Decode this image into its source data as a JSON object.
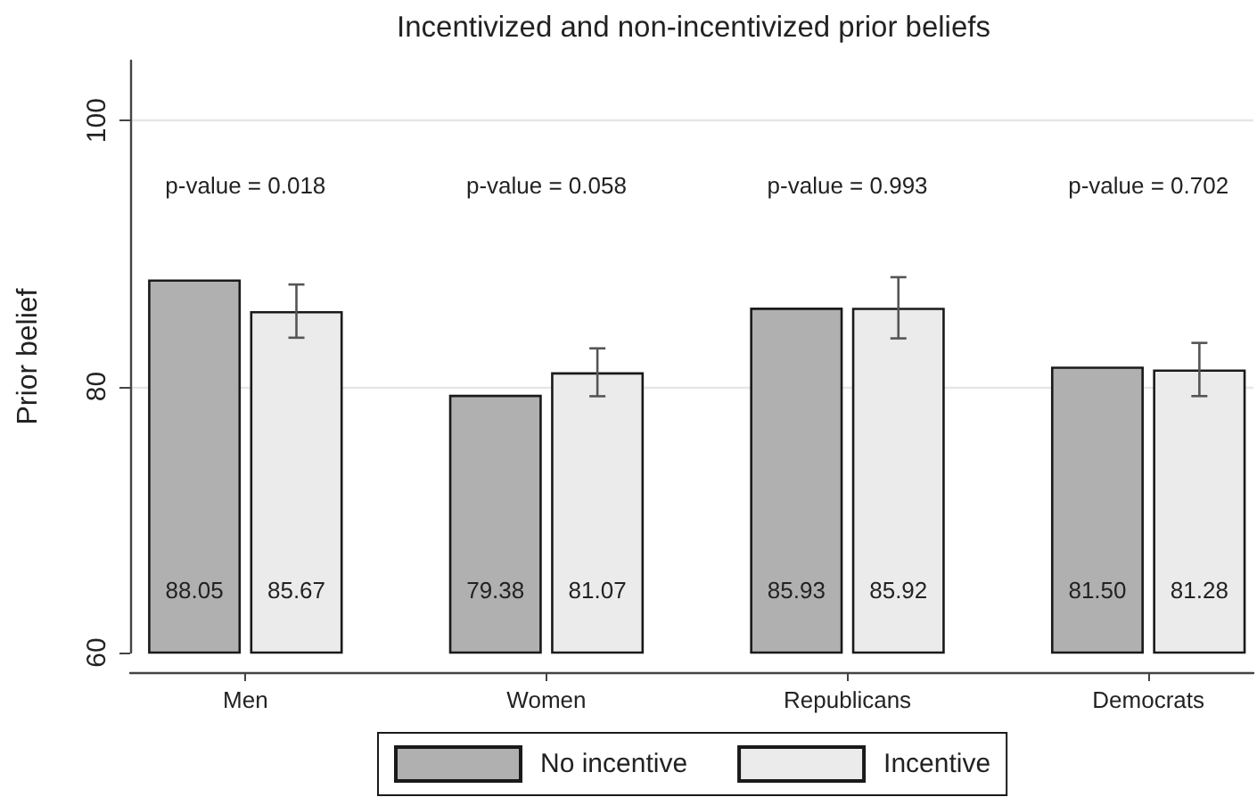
{
  "chart_data": {
    "type": "bar",
    "title": "Incentivized and non-incentivized prior beliefs",
    "ylabel": "Prior belief",
    "categories": [
      "Men",
      "Women",
      "Republicans",
      "Democrats"
    ],
    "series": [
      {
        "name": "No incentive",
        "color": "#b0b0b0",
        "values": [
          88.05,
          79.38,
          85.93,
          81.5
        ],
        "value_labels": [
          "88.05",
          "79.38",
          "85.93",
          "81.50"
        ]
      },
      {
        "name": "Incentive",
        "color": "#ebebeb",
        "values": [
          85.67,
          81.07,
          85.92,
          81.28
        ],
        "value_labels": [
          "85.67",
          "81.07",
          "85.92",
          "81.28"
        ],
        "errors": [
          2.0,
          1.8,
          2.3,
          2.0
        ]
      }
    ],
    "ylim": [
      60,
      104.5
    ],
    "yticks": [
      60,
      80,
      100
    ],
    "grid": "y",
    "legend": "bottom",
    "annotations": [
      "p-value = 0.018",
      "p-value = 0.058",
      "p-value = 0.993",
      "p-value = 0.702"
    ]
  }
}
